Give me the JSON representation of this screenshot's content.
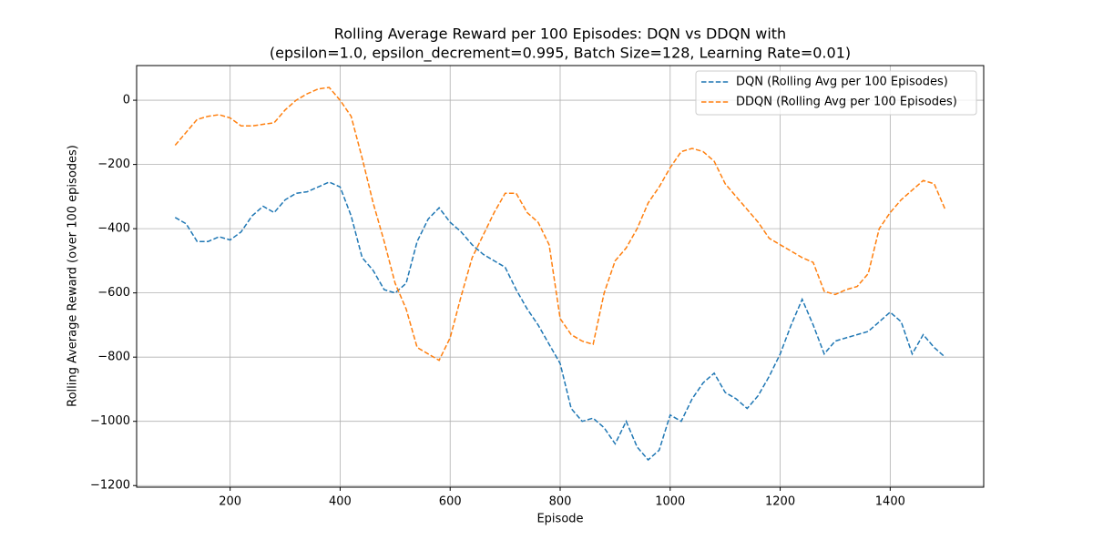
{
  "chart_data": {
    "type": "line",
    "title": [
      "Rolling Average Reward per 100 Episodes: DQN vs DDQN with",
      "(epsilon=1.0, epsilon_decrement=0.995, Batch Size=128, Learning Rate=0.01)"
    ],
    "x_label": "Episode",
    "y_label": "Rolling Average Reward (over 100 episodes)",
    "x": [
      100,
      120,
      140,
      160,
      180,
      200,
      220,
      240,
      260,
      280,
      300,
      320,
      340,
      360,
      380,
      400,
      420,
      440,
      460,
      480,
      500,
      520,
      540,
      560,
      580,
      600,
      620,
      640,
      660,
      680,
      700,
      720,
      740,
      760,
      780,
      800,
      820,
      840,
      860,
      880,
      900,
      920,
      940,
      960,
      980,
      1000,
      1020,
      1040,
      1060,
      1080,
      1100,
      1120,
      1140,
      1160,
      1180,
      1200,
      1220,
      1240,
      1260,
      1280,
      1300,
      1320,
      1340,
      1360,
      1380,
      1400,
      1420,
      1440,
      1460,
      1480,
      1500
    ],
    "series": [
      {
        "name": "DQN (Rolling Avg per 100 Episodes)",
        "color": "#1f77b4",
        "values": [
          -365,
          -385,
          -440,
          -440,
          -425,
          -435,
          -410,
          -360,
          -330,
          -350,
          -310,
          -290,
          -285,
          -270,
          -255,
          -270,
          -360,
          -490,
          -530,
          -590,
          -600,
          -570,
          -440,
          -370,
          -335,
          -380,
          -410,
          -450,
          -480,
          -500,
          -520,
          -590,
          -650,
          -700,
          -760,
          -820,
          -960,
          -1000,
          -990,
          -1020,
          -1070,
          -1000,
          -1080,
          -1120,
          -1090,
          -980,
          -1000,
          -930,
          -880,
          -850,
          -910,
          -930,
          -960,
          -920,
          -860,
          -790,
          -700,
          -620,
          -700,
          -790,
          -750,
          -740,
          -730,
          -720,
          -690,
          -660,
          -690,
          -790,
          -730,
          -770,
          -800
        ]
      },
      {
        "name": "DDQN (Rolling Avg per 100 Episodes)",
        "color": "#ff7f0e",
        "values": [
          -140,
          -100,
          -60,
          -50,
          -45,
          -55,
          -80,
          -80,
          -75,
          -70,
          -30,
          0,
          20,
          35,
          40,
          0,
          -50,
          -180,
          -320,
          -440,
          -570,
          -650,
          -770,
          -790,
          -810,
          -740,
          -610,
          -490,
          -420,
          -350,
          -290,
          -290,
          -350,
          -380,
          -450,
          -680,
          -730,
          -750,
          -760,
          -600,
          -500,
          -460,
          -400,
          -320,
          -270,
          -210,
          -160,
          -150,
          -160,
          -190,
          -260,
          -300,
          -340,
          -380,
          -430,
          -450,
          -470,
          -490,
          -505,
          -595,
          -605,
          -590,
          -580,
          -540,
          -400,
          -350,
          -310,
          -280,
          -250,
          -260,
          -340
        ]
      }
    ],
    "xlim": [
      30,
      1570
    ],
    "ylim": [
      -1205,
      108
    ],
    "xticks": [
      200,
      400,
      600,
      800,
      1000,
      1200,
      1400
    ],
    "yticks": [
      0,
      {
        "value": -200,
        "label": "−200"
      },
      {
        "value": -400,
        "label": "−400"
      },
      {
        "value": -600,
        "label": "−600"
      },
      {
        "value": -800,
        "label": "−800"
      },
      {
        "value": -1000,
        "label": "−1000"
      },
      {
        "value": -1200,
        "label": "−1200"
      }
    ],
    "grid": true,
    "legend": "upper right"
  }
}
